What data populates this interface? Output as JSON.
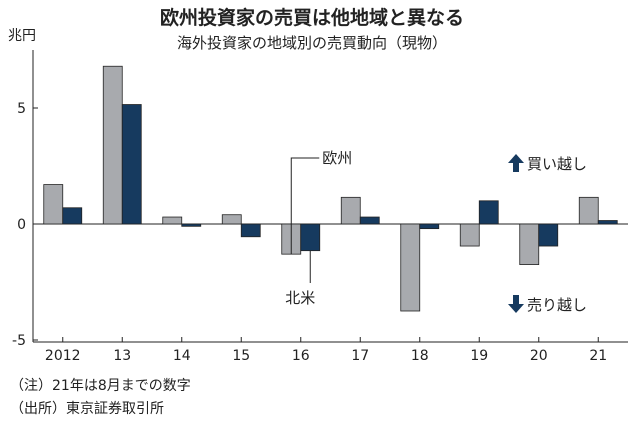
{
  "chart_data": {
    "type": "bar",
    "title": "欧州投資家の売買は他地域と異なる",
    "subtitle": "海外投資家の地域別の売買動向（現物）",
    "ylabel": "兆円",
    "xlabel": "",
    "categories": [
      "2012",
      "13",
      "14",
      "15",
      "16",
      "17",
      "18",
      "19",
      "20",
      "21"
    ],
    "series": [
      {
        "name": "欧州",
        "values": [
          1.7,
          6.8,
          0.3,
          0.4,
          -1.3,
          1.15,
          -3.75,
          -0.95,
          -1.75,
          1.15
        ],
        "color": "#a8aaae"
      },
      {
        "name": "北米",
        "values": [
          0.7,
          5.15,
          -0.1,
          -0.55,
          -1.15,
          0.3,
          -0.2,
          1.0,
          -0.95,
          0.15
        ],
        "color": "#163a5f"
      }
    ],
    "ylim": [
      -5,
      7.5
    ],
    "yticks": [
      -5,
      0,
      5
    ],
    "ytick_labels": [
      "-5",
      "0",
      "5"
    ],
    "grid": false,
    "annotations": {
      "buy": "買い越し",
      "sell": "売り越し",
      "buy_arrow": "arrow-up-icon",
      "sell_arrow": "arrow-down-icon"
    },
    "notes": [
      "（注）21年は8月までの数字",
      "（出所）東京証券取引所"
    ]
  }
}
